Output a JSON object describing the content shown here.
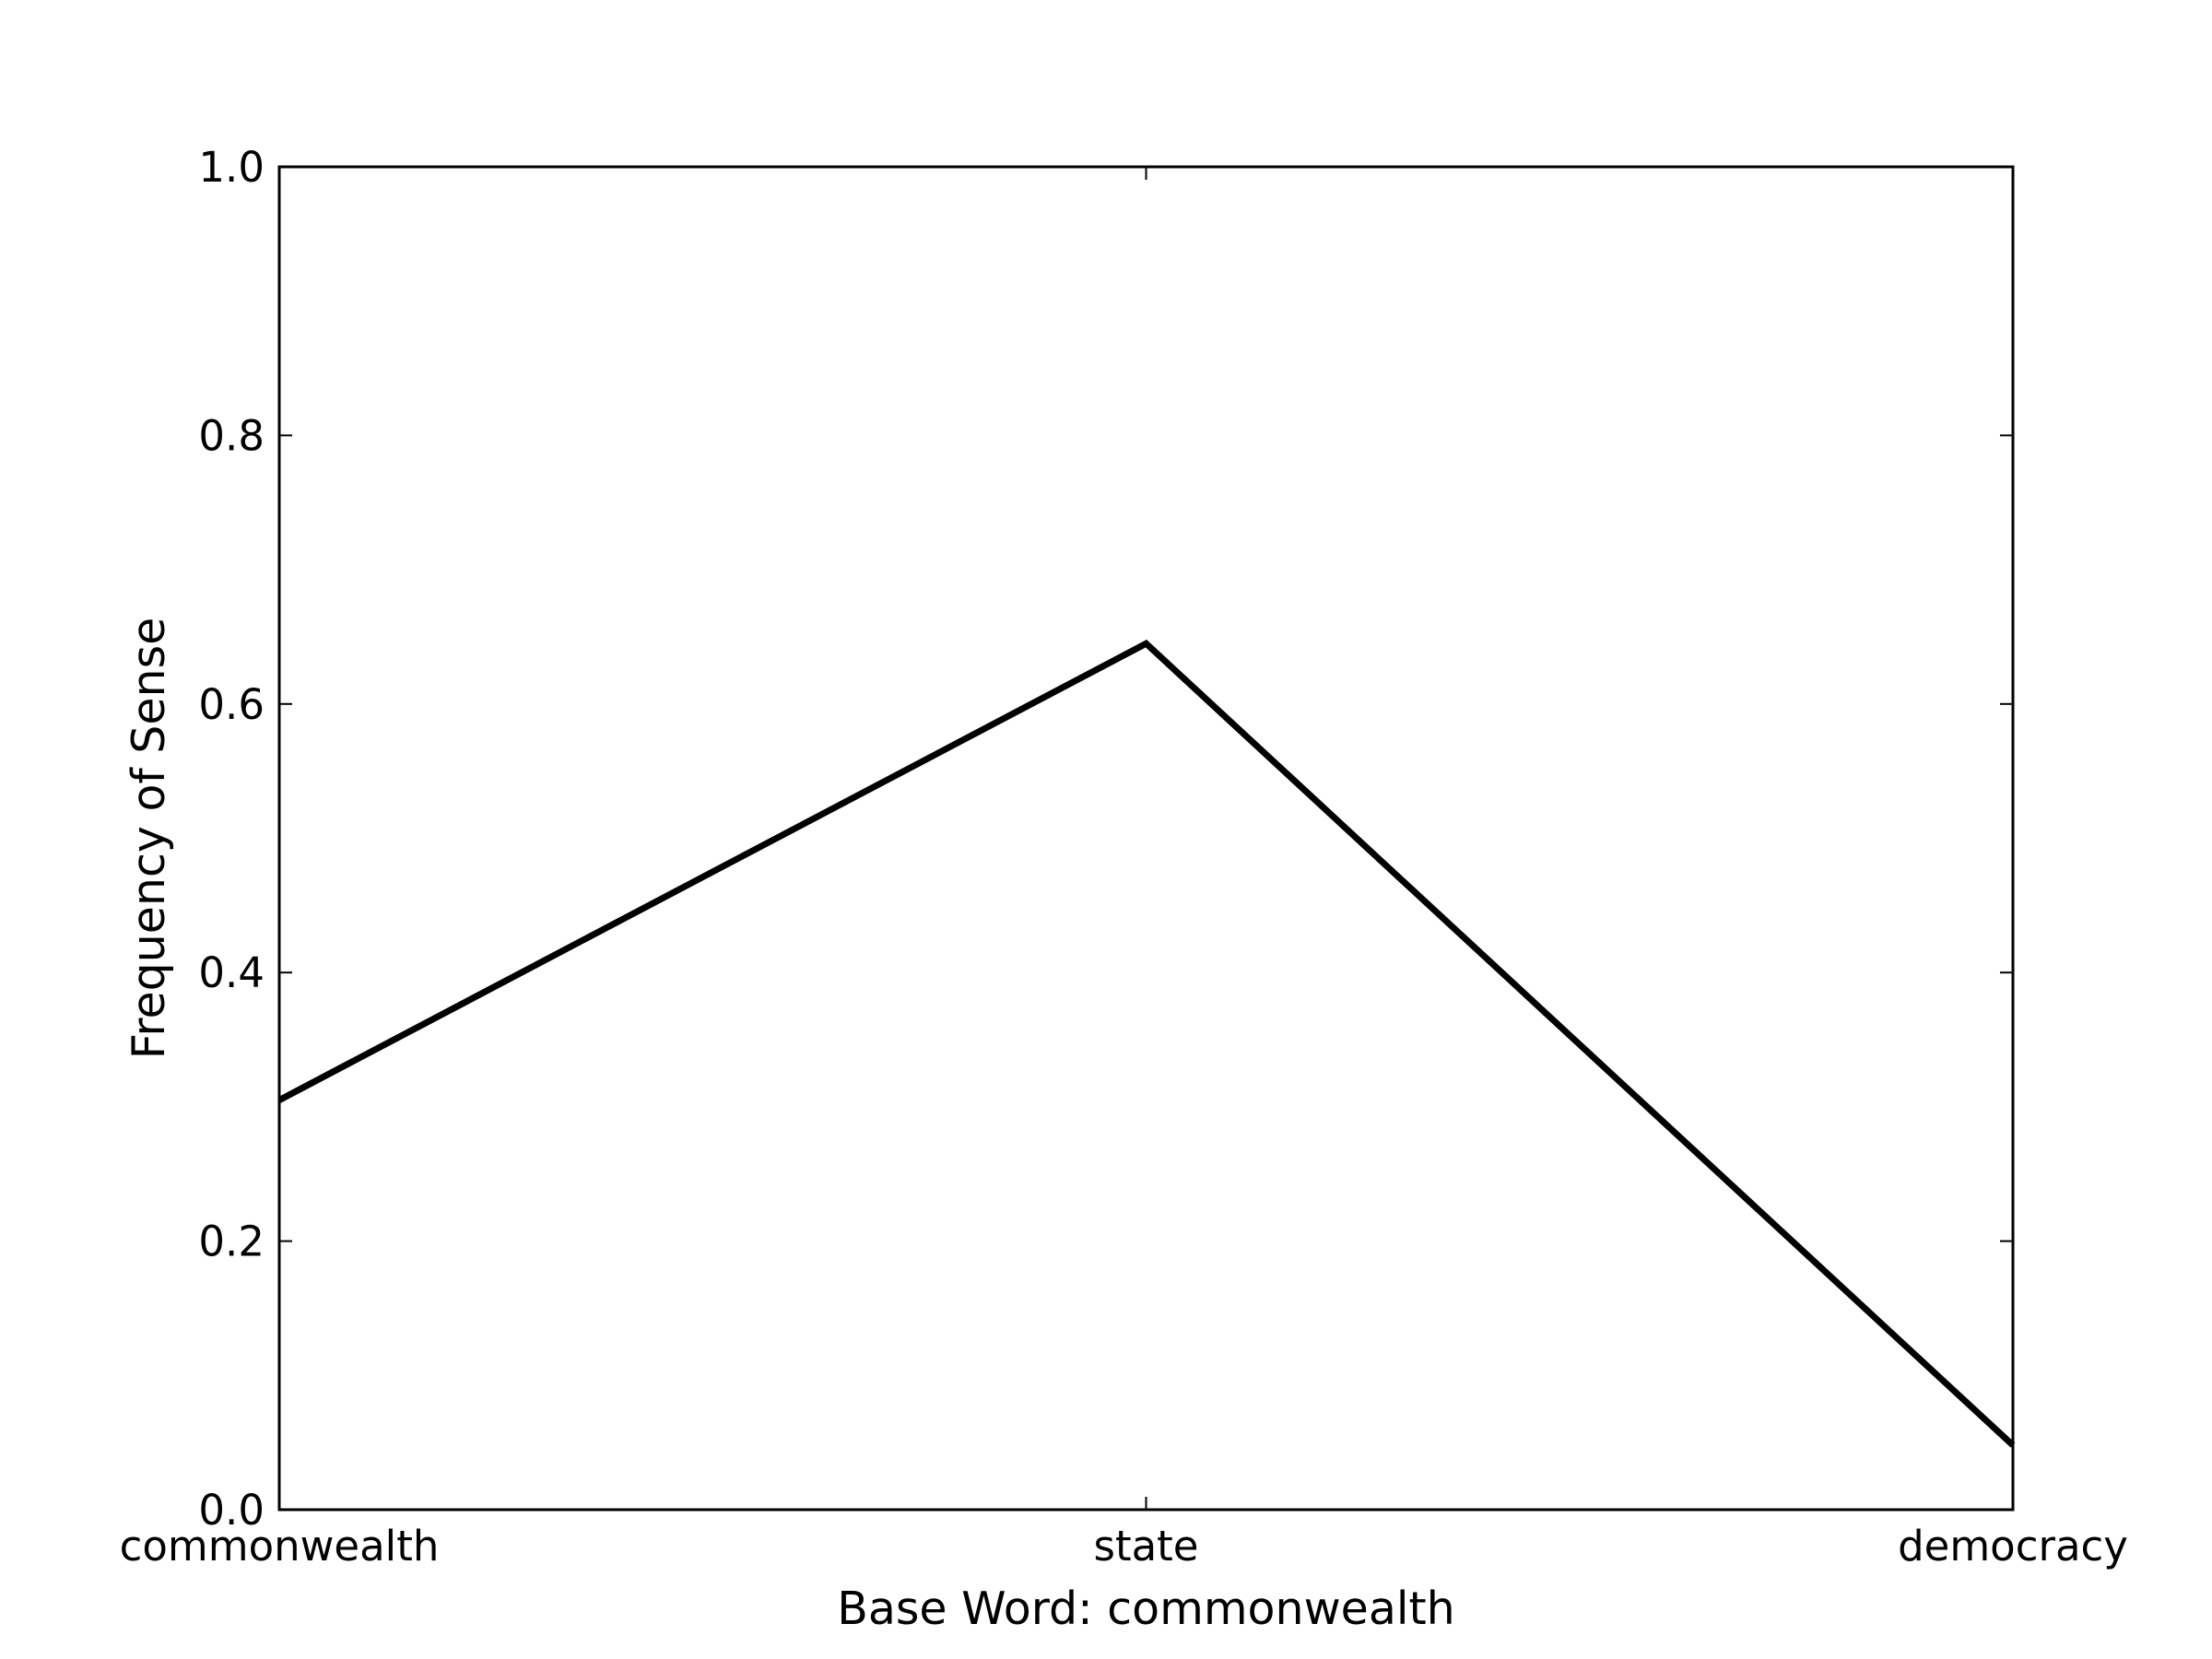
{
  "chart_data": {
    "type": "line",
    "categories": [
      "commonwealth",
      "state",
      "democracy"
    ],
    "series": [
      {
        "values": [
          0.305,
          0.645,
          0.048
        ]
      }
    ],
    "xlabel": "Base Word: commonwealth",
    "ylabel": "Frequency of Sense",
    "ylim": [
      0.0,
      1.0
    ],
    "yticks": [
      "0.0",
      "0.2",
      "0.4",
      "0.6",
      "0.8",
      "1.0"
    ],
    "grid": false,
    "line_color": "#000000"
  }
}
